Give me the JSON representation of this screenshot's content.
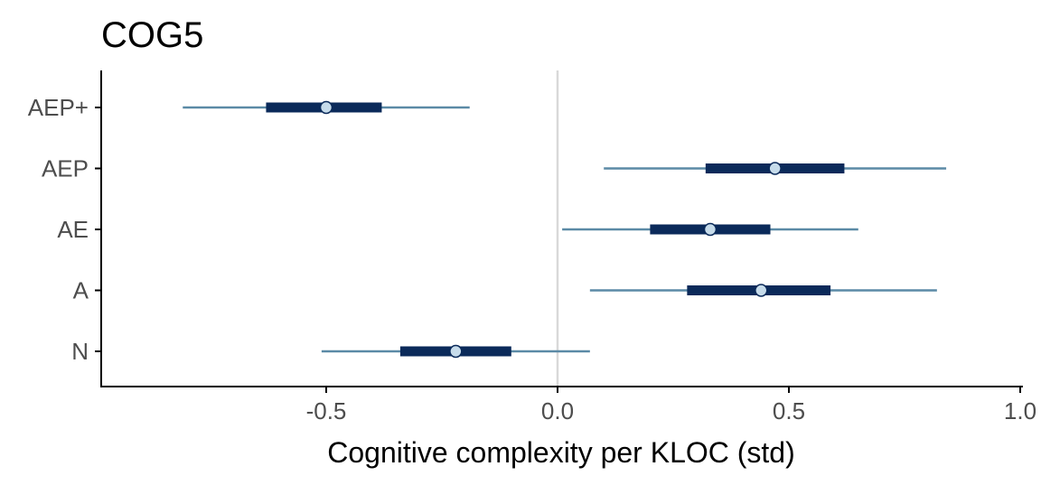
{
  "chart_data": {
    "type": "interval",
    "title": "COG5",
    "xlabel": "Cognitive complexity per KLOC (std)",
    "ylabel": "",
    "xlim": [
      -0.99,
      1.0
    ],
    "xticks": [
      "-0.5",
      "0.0",
      "0.5",
      "1.0"
    ],
    "xtick_values": [
      -0.5,
      0.0,
      0.5,
      1.0
    ],
    "reference_line": 0.0,
    "grid": false,
    "colors": {
      "outer_interval": "#5b8aa6",
      "inner_interval": "#0b2a5a",
      "point_fill": "#c6dbea",
      "point_stroke": "#0b2a5a",
      "reference_line": "#d9d9d9",
      "axis": "#000000"
    },
    "categories": [
      "AEP+",
      "AEP",
      "AE",
      "A",
      "N"
    ],
    "series": [
      {
        "category": "AEP+",
        "outer": [
          -0.81,
          -0.19
        ],
        "inner": [
          -0.63,
          -0.38
        ],
        "point": -0.5
      },
      {
        "category": "AEP",
        "outer": [
          0.1,
          0.84
        ],
        "inner": [
          0.32,
          0.62
        ],
        "point": 0.47
      },
      {
        "category": "AE",
        "outer": [
          0.01,
          0.65
        ],
        "inner": [
          0.2,
          0.46
        ],
        "point": 0.33
      },
      {
        "category": "A",
        "outer": [
          0.07,
          0.82
        ],
        "inner": [
          0.28,
          0.59
        ],
        "point": 0.44
      },
      {
        "category": "N",
        "outer": [
          -0.51,
          0.07
        ],
        "inner": [
          -0.34,
          -0.1
        ],
        "point": -0.22
      }
    ]
  }
}
